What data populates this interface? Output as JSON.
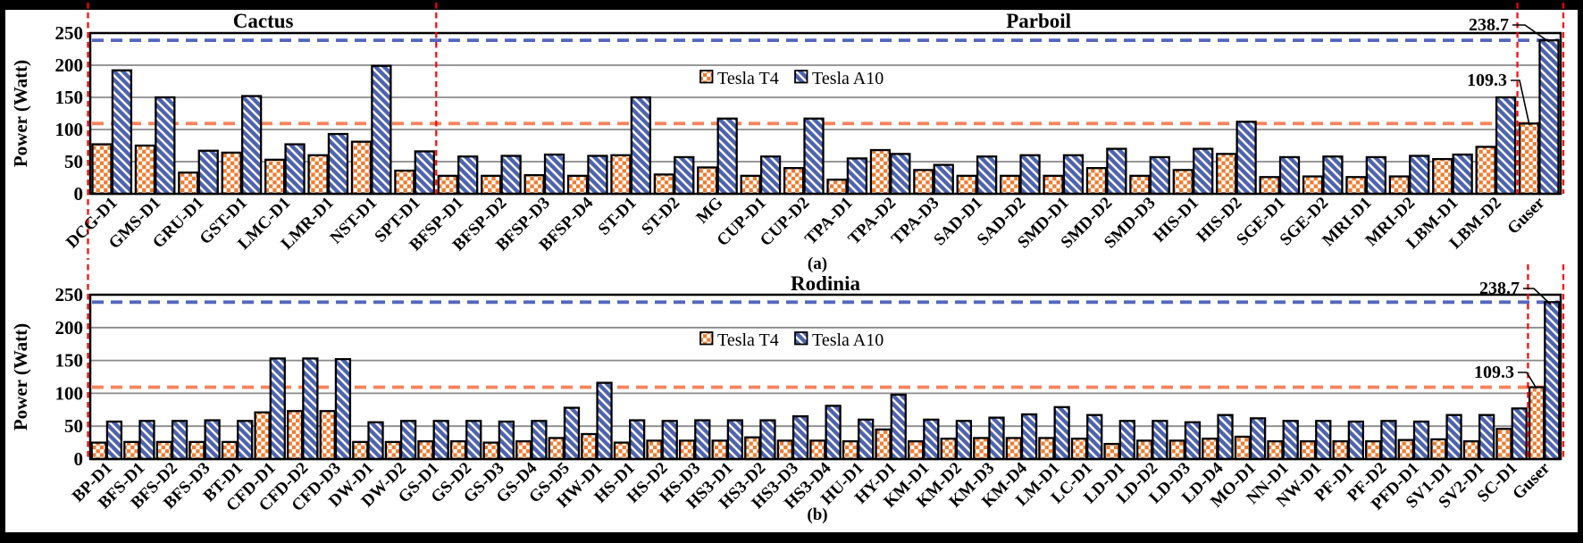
{
  "figure": {
    "ylabel": "Power (Watt)",
    "legend": [
      "Tesla T4",
      "Tesla A10"
    ],
    "colors": {
      "background": "#000000",
      "panel": "#FFFFFF",
      "t4_orange": "#ED7D31",
      "a10_blue": "#4E63AC",
      "ref_orange": "#F5845E",
      "ref_blue": "#5566BE",
      "guide_red": "#FF0000",
      "gridline": "#8A8A8A",
      "axis": "#000000"
    }
  },
  "chart_data": [
    {
      "id": "a",
      "type": "bar",
      "sub_label": "(a)",
      "section_titles": [
        "Cactus",
        "Parboil"
      ],
      "divider_after_index": 8,
      "ylabel": "Power (Watt)",
      "ylim": [
        0,
        250
      ],
      "yticks": [
        0,
        50,
        100,
        150,
        200,
        250
      ],
      "grid": true,
      "legend_position": "inside-top-center",
      "categories": [
        "DCG-D1",
        "GMS-D1",
        "GRU-D1",
        "GST-D1",
        "LMC-D1",
        "LMR-D1",
        "NST-D1",
        "SPT-D1",
        "BFSP-D1",
        "BFSP-D2",
        "BFSP-D3",
        "BFSP-D4",
        "ST-D1",
        "ST-D2",
        "MG",
        "CUP-D1",
        "CUP-D2",
        "TPA-D1",
        "TPA-D2",
        "TPA-D3",
        "SAD-D1",
        "SAD-D2",
        "SMD-D1",
        "SMD-D2",
        "SMD-D3",
        "HIS-D1",
        "HIS-D2",
        "SGE-D1",
        "SGE-D2",
        "MRI-D1",
        "MRI-D2",
        "LBM-D1",
        "LBM-D2",
        "Guser"
      ],
      "series": [
        {
          "name": "Tesla T4",
          "values": [
            77,
            75,
            33,
            64,
            53,
            60,
            81,
            36,
            28,
            28,
            29,
            28,
            60,
            30,
            41,
            28,
            40,
            22,
            68,
            37,
            28,
            28,
            28,
            40,
            28,
            37,
            62,
            26,
            27,
            26,
            27,
            54,
            73,
            109.3
          ]
        },
        {
          "name": "Tesla A10",
          "values": [
            192,
            150,
            67,
            152,
            77,
            93,
            199,
            66,
            58,
            59,
            61,
            59,
            150,
            57,
            117,
            58,
            117,
            55,
            62,
            45,
            58,
            60,
            60,
            70,
            57,
            70,
            112,
            57,
            58,
            57,
            59,
            61,
            150,
            238.7
          ]
        }
      ],
      "ref_lines": [
        {
          "value": 238.7,
          "color_key": "ref_blue"
        },
        {
          "value": 109.3,
          "color_key": "ref_orange"
        }
      ],
      "annotations": [
        {
          "text": "238.7",
          "series": 1,
          "category": "Guser"
        },
        {
          "text": "109.3",
          "series": 0,
          "category": "Guser"
        }
      ]
    },
    {
      "id": "b",
      "type": "bar",
      "sub_label": "(b)",
      "section_titles": [
        "Rodinia"
      ],
      "divider_after_index": -1,
      "ylabel": "Power (Watt)",
      "ylim": [
        0,
        250
      ],
      "yticks": [
        0,
        50,
        100,
        150,
        200,
        250
      ],
      "grid": true,
      "legend_position": "inside-top-center",
      "categories": [
        "BP-D1",
        "BFS-D1",
        "BFS-D2",
        "BFS-D3",
        "BT-D1",
        "CFD-D1",
        "CFD-D2",
        "CFD-D3",
        "DW-D1",
        "DW-D2",
        "GS-D1",
        "GS-D2",
        "GS-D3",
        "GS-D4",
        "GS-D5",
        "HW-D1",
        "HS-D1",
        "HS-D2",
        "HS-D3",
        "HS3-D1",
        "HS3-D2",
        "HS3-D3",
        "HS3-D4",
        "HU-D1",
        "HY-D1",
        "KM-D1",
        "KM-D2",
        "KM-D3",
        "KM-D4",
        "LM-D1",
        "LC-D1",
        "LD-D1",
        "LD-D2",
        "LD-D3",
        "LD-D4",
        "MO-D1",
        "NN-D1",
        "NW-D1",
        "PF-D1",
        "PF-D2",
        "PFD-D1",
        "SV1-D1",
        "SV2-D1",
        "SC-D1",
        "Guser"
      ],
      "series": [
        {
          "name": "Tesla T4",
          "values": [
            25,
            26,
            26,
            26,
            26,
            71,
            73,
            73,
            26,
            26,
            27,
            27,
            25,
            27,
            32,
            38,
            25,
            28,
            28,
            28,
            33,
            28,
            28,
            27,
            45,
            27,
            31,
            32,
            32,
            32,
            31,
            23,
            28,
            28,
            31,
            34,
            27,
            27,
            27,
            27,
            29,
            30,
            27,
            46,
            109.3
          ]
        },
        {
          "name": "Tesla A10",
          "values": [
            57,
            58,
            58,
            59,
            58,
            153,
            153,
            152,
            56,
            58,
            58,
            58,
            57,
            58,
            78,
            116,
            59,
            58,
            59,
            59,
            59,
            65,
            81,
            60,
            98,
            60,
            58,
            63,
            68,
            79,
            67,
            58,
            58,
            56,
            67,
            62,
            58,
            58,
            57,
            58,
            57,
            67,
            67,
            77,
            238.7
          ]
        }
      ],
      "ref_lines": [
        {
          "value": 238.7,
          "color_key": "ref_blue"
        },
        {
          "value": 109.3,
          "color_key": "ref_orange"
        }
      ],
      "annotations": [
        {
          "text": "238.7",
          "series": 1,
          "category": "Guser"
        },
        {
          "text": "109.3",
          "series": 0,
          "category": "Guser"
        }
      ]
    }
  ]
}
